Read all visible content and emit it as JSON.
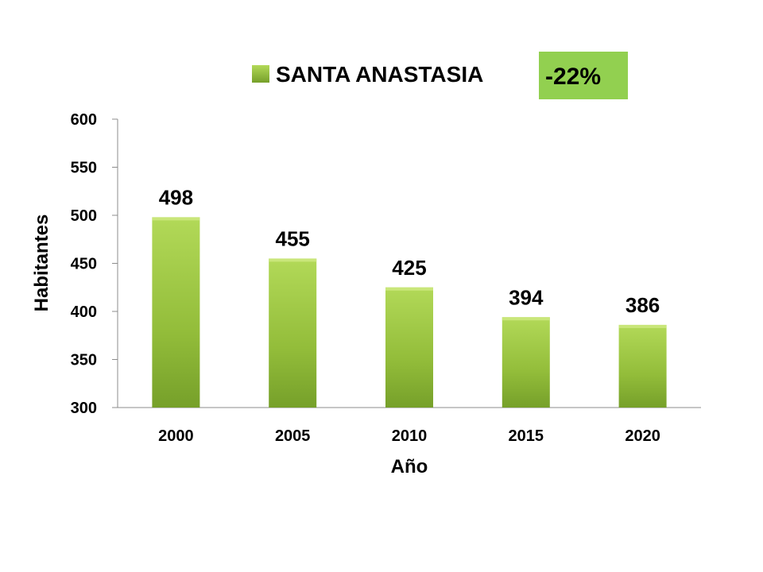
{
  "chart_data": {
    "type": "bar",
    "categories": [
      "2000",
      "2005",
      "2010",
      "2015",
      "2020"
    ],
    "series": [
      {
        "name": "SANTA ANASTASIA",
        "values": [
          498,
          455,
          425,
          394,
          386
        ]
      }
    ],
    "xlabel": "Año",
    "ylabel": "Habitantes",
    "ylim": [
      300,
      600
    ],
    "yticks": [
      300,
      350,
      400,
      450,
      500,
      550,
      600
    ],
    "grid": false,
    "legend_position": "top-center",
    "bar_color": "#9bc43c",
    "annotation": "-22%",
    "annotation_color": "#92d050"
  }
}
